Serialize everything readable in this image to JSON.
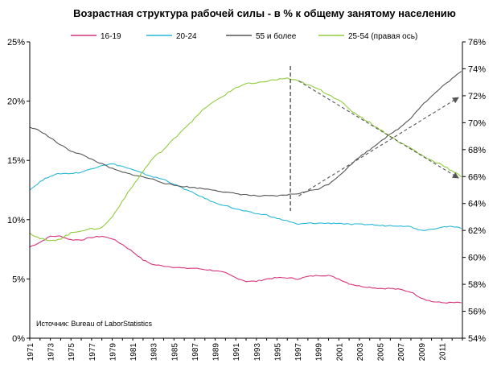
{
  "chart_data": {
    "type": "line",
    "title": "Возрастная структура рабочей силы - в % к общему занятому населению",
    "source": "Источник: Bureau of LaborStatistics",
    "y_left": {
      "lim": [
        0,
        25
      ],
      "ticks": [
        "0%",
        "5%",
        "10%",
        "15%",
        "20%",
        "25%"
      ]
    },
    "y_right": {
      "lim": [
        54,
        76
      ],
      "ticks": [
        "54%",
        "56%",
        "58%",
        "60%",
        "62%",
        "64%",
        "66%",
        "68%",
        "70%",
        "72%",
        "74%",
        "76%"
      ]
    },
    "x_ticks": [
      "1971",
      "1973",
      "1975",
      "1977",
      "1979",
      "1981",
      "1983",
      "1985",
      "1987",
      "1989",
      "1991",
      "1993",
      "1995",
      "1997",
      "1999",
      "2001",
      "2003",
      "2005",
      "2007",
      "2009",
      "2011"
    ],
    "xlim": [
      1971,
      2013
    ],
    "series": [
      {
        "name": "16-19",
        "axis": "left",
        "color": "#d6337a",
        "x": [
          1971,
          1972,
          1973,
          1974,
          1975,
          1976,
          1977,
          1978,
          1979,
          1980,
          1981,
          1982,
          1983,
          1984,
          1985,
          1986,
          1987,
          1988,
          1989,
          1990,
          1991,
          1992,
          1993,
          1994,
          1995,
          1996,
          1997,
          1998,
          1999,
          2000,
          2001,
          2002,
          2003,
          2004,
          2005,
          2006,
          2007,
          2008,
          2009,
          2010,
          2011,
          2012,
          2012.9
        ],
        "values": [
          7.7,
          8.1,
          8.6,
          8.6,
          8.3,
          8.3,
          8.5,
          8.6,
          8.4,
          7.9,
          7.3,
          6.6,
          6.2,
          6.1,
          6.0,
          5.9,
          5.9,
          5.8,
          5.7,
          5.5,
          5.1,
          4.8,
          4.8,
          5.0,
          5.1,
          5.1,
          5.0,
          5.2,
          5.3,
          5.3,
          5.0,
          4.6,
          4.4,
          4.3,
          4.2,
          4.2,
          4.1,
          3.9,
          3.4,
          3.1,
          3.0,
          3.0,
          3.0
        ]
      },
      {
        "name": "20-24",
        "axis": "left",
        "color": "#29b8d8",
        "x": [
          1971,
          1972,
          1973,
          1974,
          1975,
          1976,
          1977,
          1978,
          1979,
          1980,
          1981,
          1982,
          1983,
          1984,
          1985,
          1986,
          1987,
          1988,
          1989,
          1990,
          1991,
          1992,
          1993,
          1994,
          1995,
          1996,
          1997,
          1998,
          1999,
          2000,
          2001,
          2002,
          2003,
          2004,
          2005,
          2006,
          2007,
          2008,
          2009,
          2010,
          2011,
          2012,
          2012.9
        ],
        "values": [
          12.5,
          13.2,
          13.7,
          13.9,
          13.9,
          14.0,
          14.3,
          14.6,
          14.7,
          14.5,
          14.2,
          13.9,
          13.6,
          13.4,
          13.0,
          12.6,
          12.2,
          11.8,
          11.4,
          11.2,
          10.9,
          10.7,
          10.5,
          10.4,
          10.1,
          9.9,
          9.6,
          9.7,
          9.7,
          9.7,
          9.7,
          9.6,
          9.6,
          9.6,
          9.5,
          9.5,
          9.5,
          9.4,
          9.1,
          9.2,
          9.4,
          9.4,
          9.3
        ]
      },
      {
        "name": "55 и более",
        "axis": "left",
        "color": "#555555",
        "x": [
          1971,
          1972,
          1973,
          1974,
          1975,
          1976,
          1977,
          1978,
          1979,
          1980,
          1981,
          1982,
          1983,
          1984,
          1985,
          1986,
          1987,
          1988,
          1989,
          1990,
          1991,
          1992,
          1993,
          1994,
          1995,
          1996,
          1997,
          1998,
          1999,
          2000,
          2001,
          2002,
          2003,
          2004,
          2005,
          2006,
          2007,
          2008,
          2009,
          2010,
          2011,
          2012,
          2012.9
        ],
        "values": [
          17.8,
          17.5,
          16.9,
          16.3,
          15.8,
          15.5,
          15.1,
          14.7,
          14.3,
          14.0,
          13.8,
          13.6,
          13.4,
          13.1,
          12.9,
          12.8,
          12.7,
          12.6,
          12.5,
          12.3,
          12.2,
          12.1,
          12.0,
          12.0,
          12.0,
          12.1,
          12.2,
          12.4,
          12.6,
          13.0,
          13.7,
          14.5,
          15.3,
          15.9,
          16.6,
          17.2,
          17.8,
          18.6,
          19.6,
          20.4,
          21.2,
          21.9,
          22.5
        ]
      },
      {
        "name": "25-54 (правая ось)",
        "axis": "right",
        "color": "#92cc3f",
        "x": [
          1971,
          1972,
          1973,
          1974,
          1975,
          1976,
          1977,
          1978,
          1979,
          1980,
          1981,
          1982,
          1983,
          1984,
          1985,
          1986,
          1987,
          1988,
          1989,
          1990,
          1991,
          1992,
          1993,
          1994,
          1995,
          1996,
          1997,
          1998,
          1999,
          2000,
          2001,
          2002,
          2003,
          2004,
          2005,
          2006,
          2007,
          2008,
          2009,
          2010,
          2011,
          2012,
          2012.9
        ],
        "values": [
          61.8,
          61.4,
          61.2,
          61.4,
          61.8,
          62.0,
          62.1,
          62.2,
          63.0,
          64.2,
          65.3,
          66.4,
          67.4,
          68.0,
          68.8,
          69.6,
          70.3,
          71.1,
          71.6,
          72.1,
          72.6,
          72.9,
          72.9,
          73.1,
          73.2,
          73.3,
          73.1,
          72.8,
          72.5,
          72.1,
          71.7,
          71.0,
          70.5,
          70.0,
          69.5,
          69.0,
          68.5,
          68.1,
          67.6,
          67.2,
          66.9,
          66.4,
          66.0
        ]
      }
    ]
  }
}
